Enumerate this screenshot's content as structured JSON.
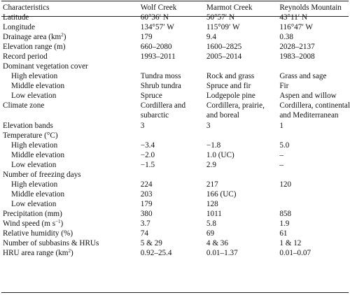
{
  "headers": [
    "Characteristics",
    "Wolf Creek",
    "Marmot Creek",
    "Reynolds Mountain"
  ],
  "rows": [
    {
      "label": "Latitude",
      "indent": false,
      "values": [
        "60°36′ N",
        "50°57′ N",
        "43°11′ N"
      ]
    },
    {
      "label": "Longitude",
      "indent": false,
      "values": [
        "134°57′ W",
        "115°09′ W",
        "116°47′ W"
      ]
    },
    {
      "label": "Drainage area (km2)",
      "indent": false,
      "values": [
        "179",
        "9.4",
        "0.38"
      ]
    },
    {
      "label": "Elevation range (m)",
      "indent": false,
      "values": [
        "660–2080",
        "1600–2825",
        "2028–2137"
      ]
    },
    {
      "label": "Record period",
      "indent": false,
      "values": [
        "1993–2011",
        "2005–2014",
        "1983–2008"
      ]
    },
    {
      "label": "Dominant vegetation cover",
      "indent": false,
      "values": [
        "",
        "",
        ""
      ]
    },
    {
      "label": "High elevation",
      "indent": true,
      "values": [
        "Tundra moss",
        "Rock and grass",
        "Grass and sage"
      ]
    },
    {
      "label": "Middle elevation",
      "indent": true,
      "values": [
        "Shrub tundra",
        "Spruce and fir",
        "Fir"
      ]
    },
    {
      "label": "Low elevation",
      "indent": true,
      "values": [
        "Spruce",
        "Lodgepole pine",
        "Aspen and willow"
      ]
    },
    {
      "label": "Climate zone",
      "indent": false,
      "values": [
        "Cordillera and",
        "Cordillera, prairie,",
        "Cordillera, continental"
      ]
    },
    {
      "label": "",
      "indent": false,
      "values": [
        "subarctic",
        "and boreal",
        "and Mediterranean"
      ]
    },
    {
      "label": "Elevation bands",
      "indent": false,
      "values": [
        "3",
        "3",
        "1"
      ]
    },
    {
      "label": "Temperature (°C)",
      "indent": false,
      "values": [
        "",
        "",
        ""
      ]
    },
    {
      "label": "High elevation",
      "indent": true,
      "values": [
        "−3.4",
        "−1.8",
        "5.0"
      ]
    },
    {
      "label": "Middle elevation",
      "indent": true,
      "values": [
        "−2.0",
        "1.0 (UC)",
        "–"
      ]
    },
    {
      "label": "Low elevation",
      "indent": true,
      "values": [
        "−1.5",
        "2.9",
        "–"
      ]
    },
    {
      "label": "Number of freezing days",
      "indent": false,
      "values": [
        "",
        "",
        ""
      ]
    },
    {
      "label": "High elevation",
      "indent": true,
      "values": [
        "224",
        "217",
        "120"
      ]
    },
    {
      "label": "Middle elevation",
      "indent": true,
      "values": [
        "203",
        "166 (UC)",
        ""
      ]
    },
    {
      "label": "Low elevation",
      "indent": true,
      "values": [
        "179",
        "128",
        ""
      ]
    },
    {
      "label": "Precipitation (mm)",
      "indent": false,
      "values": [
        "380",
        "1011",
        "858"
      ]
    },
    {
      "label": "Wind speed (m s−1)",
      "indent": false,
      "values": [
        "3.7",
        "5.8",
        "1.9"
      ]
    },
    {
      "label": "Relative humidity (%)",
      "indent": false,
      "values": [
        "74",
        "69",
        "61"
      ]
    },
    {
      "label": "Number of subbasins & HRUs",
      "indent": false,
      "values": [
        "5 & 29",
        "4 & 36",
        "1 & 12"
      ]
    },
    {
      "label": "HRU area range (km2)",
      "indent": false,
      "values": [
        "0.92–25.4",
        "0.01–1.37",
        "0.01–0.07"
      ]
    }
  ]
}
